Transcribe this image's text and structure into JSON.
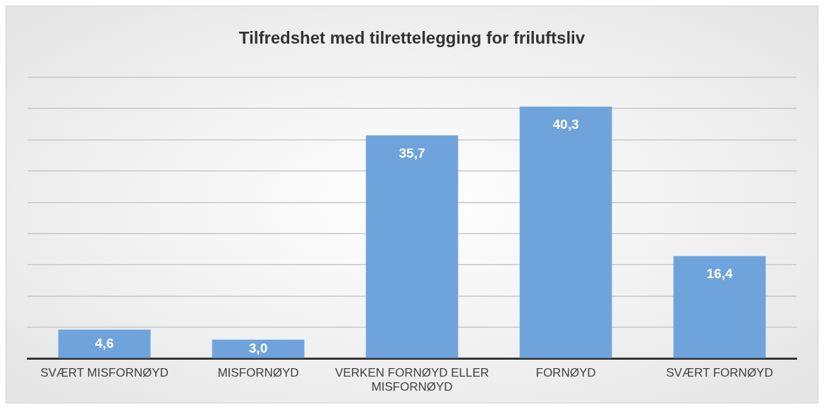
{
  "chart_data": {
    "type": "bar",
    "title": "Tilfredshet med tilrettelegging for friluftsliv",
    "categories": [
      "SVÆRT MISFORNØYD",
      "MISFORNØYD",
      "VERKEN FORNØYD ELLER MISFORNØYD",
      "FORNØYD",
      "SVÆRT FORNØYD"
    ],
    "values": [
      4.6,
      3.0,
      35.7,
      40.3,
      16.4
    ],
    "value_labels": [
      "4,6",
      "3,0",
      "35,7",
      "40,3",
      "16,4"
    ],
    "color": "#6fa3dc",
    "grid": "y",
    "tick_labels": "x"
  }
}
